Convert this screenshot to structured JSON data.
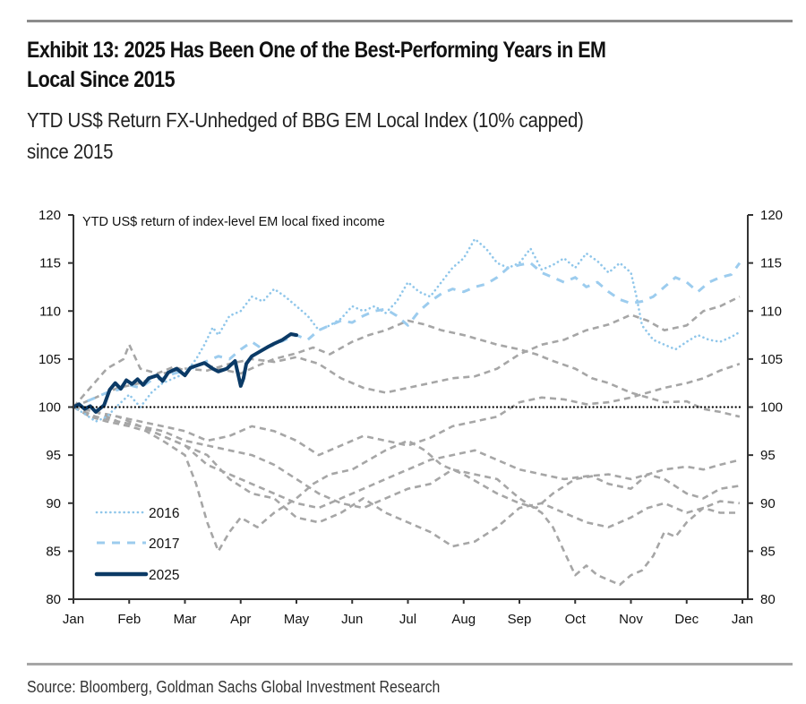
{
  "header": {
    "title": "Exhibit 13: 2025 Has Been One of the Best-Performing Years in EM Local Since 2015",
    "title_line1": "Exhibit 13: 2025 Has Been One of the Best-Performing Years in EM",
    "title_line2": "Local Since 2015",
    "subtitle_line1": "YTD US$ Return FX-Unhedged of BBG EM Local Index (10% capped)",
    "subtitle_line2": "since 2015"
  },
  "footer": {
    "source": "Source: Bloomberg, Goldman Sachs Global Investment Research"
  },
  "colors": {
    "highlight_2025": "#0b3a66",
    "year_2016": "#8fc6ea",
    "year_2017": "#9cccee",
    "other_years": "#a6a6a6",
    "baseline": "#000000",
    "axis": "#333333"
  },
  "chart_data": {
    "type": "line",
    "title": "YTD US$ return of index-level EM local fixed income",
    "xlabel": "",
    "ylabel": "",
    "x_unit": "months since Jan 1",
    "xlim": [
      0,
      12
    ],
    "ylim": [
      80,
      120
    ],
    "x_ticks": [
      {
        "pos": 0,
        "label": "Jan"
      },
      {
        "pos": 1,
        "label": "Feb"
      },
      {
        "pos": 2,
        "label": "Mar"
      },
      {
        "pos": 3,
        "label": "Apr"
      },
      {
        "pos": 4,
        "label": "May"
      },
      {
        "pos": 5,
        "label": "Jun"
      },
      {
        "pos": 6,
        "label": "Jul"
      },
      {
        "pos": 7,
        "label": "Aug"
      },
      {
        "pos": 8,
        "label": "Sep"
      },
      {
        "pos": 9,
        "label": "Oct"
      },
      {
        "pos": 10,
        "label": "Nov"
      },
      {
        "pos": 11,
        "label": "Dec"
      },
      {
        "pos": 12,
        "label": "Jan"
      }
    ],
    "y_ticks": [
      80,
      85,
      90,
      95,
      100,
      105,
      110,
      115,
      120
    ],
    "baseline": 100,
    "grid": false,
    "legend_position": "bottom-left",
    "legend": [
      {
        "label": "2016",
        "style": "dotted",
        "series": "2016"
      },
      {
        "label": "2017",
        "style": "dashed",
        "series": "2017"
      },
      {
        "label": "2025",
        "style": "solid",
        "series": "2025"
      }
    ],
    "series": [
      {
        "name": "2025",
        "style": "solid",
        "x": [
          0,
          0.1,
          0.2,
          0.3,
          0.4,
          0.55,
          0.65,
          0.75,
          0.85,
          0.95,
          1.05,
          1.15,
          1.25,
          1.35,
          1.5,
          1.6,
          1.7,
          1.85,
          2.0,
          2.1,
          2.2,
          2.35,
          2.5,
          2.6,
          2.75,
          2.9,
          3.0,
          3.05,
          3.1,
          3.2,
          3.35,
          3.5,
          3.6,
          3.75,
          3.9,
          4.0
        ],
        "values": [
          100,
          100.3,
          99.8,
          100.1,
          99.5,
          100.2,
          101.8,
          102.5,
          101.9,
          102.8,
          102.4,
          102.9,
          102.3,
          103.0,
          103.3,
          102.7,
          103.6,
          104.0,
          103.3,
          104.1,
          104.3,
          104.6,
          104.0,
          103.7,
          104.0,
          104.8,
          102.2,
          103.0,
          104.5,
          105.3,
          105.8,
          106.3,
          106.6,
          107.0,
          107.6,
          107.5
        ]
      },
      {
        "name": "2016",
        "style": "dotted",
        "x": [
          0,
          0.2,
          0.4,
          0.6,
          0.8,
          1.0,
          1.2,
          1.4,
          1.6,
          1.8,
          2.0,
          2.2,
          2.35,
          2.5,
          2.6,
          2.8,
          3.0,
          3.2,
          3.4,
          3.6,
          3.8,
          4.0,
          4.2,
          4.4,
          4.6,
          4.8,
          5.0,
          5.2,
          5.4,
          5.6,
          5.8,
          6.0,
          6.2,
          6.4,
          6.6,
          6.8,
          7.0,
          7.2,
          7.4,
          7.6,
          7.8,
          8.0,
          8.2,
          8.4,
          8.6,
          8.8,
          9.0,
          9.2,
          9.4,
          9.6,
          9.8,
          10.0,
          10.1,
          10.2,
          10.4,
          10.6,
          10.8,
          11.0,
          11.2,
          11.4,
          11.6,
          11.8,
          11.95
        ],
        "values": [
          100,
          99.3,
          98.5,
          99.0,
          100.2,
          101.3,
          100.0,
          101.5,
          102.5,
          103.0,
          103.5,
          105.0,
          106.5,
          108.3,
          107.5,
          109.5,
          110.0,
          111.5,
          111.0,
          112.3,
          111.5,
          110.5,
          109.5,
          108.0,
          108.5,
          109.2,
          110.5,
          110.0,
          110.5,
          109.8,
          111.0,
          113.0,
          112.0,
          111.5,
          113.0,
          114.5,
          115.5,
          117.5,
          116.5,
          115.0,
          114.5,
          115.0,
          116.5,
          114.3,
          114.8,
          115.5,
          114.5,
          116.0,
          115.2,
          114.0,
          115.0,
          114.0,
          111.5,
          108.5,
          107.0,
          106.5,
          106.0,
          106.8,
          107.5,
          107.0,
          106.8,
          107.3,
          107.8
        ]
      },
      {
        "name": "2017",
        "style": "dashed",
        "x": [
          0,
          0.2,
          0.4,
          0.6,
          0.8,
          1.0,
          1.2,
          1.4,
          1.6,
          1.8,
          2.0,
          2.2,
          2.4,
          2.6,
          2.8,
          3.0,
          3.2,
          3.4,
          3.6,
          3.8,
          4.0,
          4.2,
          4.4,
          4.6,
          4.8,
          5.0,
          5.2,
          5.4,
          5.6,
          5.8,
          6.0,
          6.2,
          6.4,
          6.6,
          6.8,
          7.0,
          7.2,
          7.4,
          7.6,
          7.8,
          8.0,
          8.2,
          8.4,
          8.6,
          8.8,
          9.0,
          9.2,
          9.4,
          9.6,
          9.8,
          10.0,
          10.2,
          10.4,
          10.6,
          10.8,
          11.0,
          11.2,
          11.4,
          11.6,
          11.8,
          11.95
        ],
        "values": [
          100,
          100.5,
          101.0,
          101.5,
          101.8,
          102.3,
          102.0,
          102.8,
          103.0,
          103.5,
          103.8,
          104.2,
          104.8,
          105.3,
          105.0,
          106.0,
          106.8,
          106.0,
          106.5,
          107.0,
          107.5,
          107.0,
          108.0,
          108.5,
          109.0,
          108.8,
          109.5,
          110.0,
          110.2,
          109.5,
          108.5,
          110.0,
          111.0,
          111.8,
          112.3,
          112.0,
          112.5,
          112.8,
          113.5,
          114.5,
          114.8,
          115.0,
          114.0,
          113.5,
          113.0,
          113.5,
          112.5,
          113.0,
          112.0,
          111.2,
          110.8,
          111.0,
          111.5,
          112.5,
          113.5,
          113.0,
          112.0,
          113.0,
          113.5,
          113.8,
          115.0
        ]
      },
      {
        "name": "other_a",
        "style": "dashed",
        "x": [
          0,
          0.3,
          0.6,
          0.9,
          1.0,
          1.2,
          1.5,
          1.8,
          2.0,
          2.3,
          2.6,
          3.0,
          3.3,
          3.6,
          4.0,
          4.3,
          4.6,
          5.0,
          5.3,
          5.6,
          6.0,
          6.3,
          6.6,
          7.0,
          7.3,
          7.6,
          8.0,
          8.3,
          8.6,
          9.0,
          9.3,
          9.6,
          10.0,
          10.3,
          10.6,
          11.0,
          11.3,
          11.6,
          11.95
        ],
        "values": [
          100,
          102.0,
          104.0,
          105.0,
          106.5,
          104.0,
          103.5,
          104.2,
          103.8,
          104.5,
          104.0,
          103.5,
          104.3,
          105.0,
          105.6,
          106.2,
          105.5,
          106.8,
          107.5,
          108.0,
          109.0,
          108.6,
          108.0,
          107.5,
          107.0,
          106.5,
          106.0,
          105.5,
          104.8,
          104.0,
          103.0,
          102.5,
          101.5,
          101.0,
          100.5,
          100.6,
          99.8,
          99.5,
          99.0
        ]
      },
      {
        "name": "other_b",
        "style": "dashed",
        "x": [
          0,
          0.4,
          0.8,
          1.2,
          1.6,
          2.0,
          2.4,
          2.8,
          3.2,
          3.6,
          4.0,
          4.4,
          4.8,
          5.2,
          5.6,
          6.0,
          6.4,
          6.8,
          7.2,
          7.6,
          8.0,
          8.4,
          8.8,
          9.2,
          9.6,
          10.0,
          10.3,
          10.6,
          11.0,
          11.3,
          11.6,
          11.95
        ],
        "values": [
          100,
          101.0,
          102.0,
          102.5,
          103.5,
          104.0,
          103.8,
          104.5,
          105.0,
          104.7,
          105.2,
          104.5,
          103.0,
          102.0,
          101.5,
          102.0,
          102.5,
          103.0,
          103.2,
          104.0,
          105.5,
          106.5,
          107.0,
          108.0,
          108.6,
          109.6,
          109.0,
          108.0,
          108.5,
          110.0,
          110.5,
          111.5
        ]
      },
      {
        "name": "other_c",
        "style": "dashed",
        "x": [
          0,
          0.4,
          0.8,
          1.2,
          1.6,
          2.0,
          2.4,
          2.8,
          3.2,
          3.6,
          4.0,
          4.4,
          4.8,
          5.2,
          5.6,
          6.0,
          6.4,
          6.8,
          7.2,
          7.6,
          8.0,
          8.4,
          8.8,
          9.2,
          9.6,
          10.0,
          10.3,
          10.6,
          11.0,
          11.3,
          11.6,
          11.95
        ],
        "values": [
          100,
          99.5,
          99.0,
          98.5,
          98.0,
          97.5,
          96.5,
          97.0,
          98.0,
          97.5,
          96.5,
          95.0,
          96.0,
          97.0,
          96.5,
          96.0,
          96.8,
          98.0,
          98.5,
          99.0,
          100.5,
          101.0,
          100.8,
          100.3,
          100.5,
          101.0,
          101.5,
          102.0,
          102.5,
          103.0,
          103.8,
          104.5
        ]
      },
      {
        "name": "other_d",
        "style": "dashed",
        "x": [
          0,
          0.3,
          0.6,
          1.0,
          1.3,
          1.6,
          2.0,
          2.2,
          2.4,
          2.6,
          2.8,
          3.0,
          3.3,
          3.6,
          4.0,
          4.3,
          4.6,
          5.0,
          5.3,
          5.6,
          6.0,
          6.3,
          6.6,
          7.0,
          7.3,
          7.6,
          8.0,
          8.3,
          8.6,
          9.0,
          9.3,
          9.6,
          10.0,
          10.3,
          10.6,
          11.0,
          11.3,
          11.6,
          11.95
        ],
        "values": [
          100,
          99.0,
          98.5,
          98.0,
          97.5,
          96.5,
          95.0,
          92.0,
          88.0,
          85.0,
          87.0,
          88.5,
          87.5,
          89.0,
          90.5,
          92.0,
          93.0,
          93.5,
          94.5,
          95.5,
          96.5,
          95.5,
          94.0,
          93.0,
          92.0,
          91.0,
          90.0,
          89.5,
          91.0,
          92.5,
          92.8,
          92.0,
          91.5,
          93.0,
          92.5,
          91.0,
          90.5,
          91.5,
          91.8
        ]
      },
      {
        "name": "other_e",
        "style": "dashed",
        "x": [
          0,
          0.4,
          0.8,
          1.2,
          1.6,
          2.0,
          2.4,
          2.8,
          3.2,
          3.6,
          4.0,
          4.4,
          4.8,
          5.2,
          5.6,
          6.0,
          6.4,
          6.8,
          7.2,
          7.6,
          8.0,
          8.4,
          8.8,
          9.2,
          9.6,
          10.0,
          10.3,
          10.6,
          11.0,
          11.3,
          11.6,
          11.95
        ],
        "values": [
          100,
          99.5,
          98.5,
          98.0,
          97.0,
          96.0,
          94.0,
          93.0,
          92.0,
          91.0,
          90.0,
          89.5,
          90.5,
          91.5,
          92.5,
          93.5,
          94.5,
          95.0,
          95.5,
          94.5,
          93.5,
          93.0,
          92.5,
          92.8,
          93.0,
          92.5,
          93.0,
          93.5,
          93.8,
          93.5,
          94.0,
          94.5
        ]
      },
      {
        "name": "other_f",
        "style": "dashed",
        "x": [
          0,
          0.4,
          0.8,
          1.2,
          1.6,
          2.0,
          2.4,
          2.8,
          3.2,
          3.6,
          4.0,
          4.4,
          4.8,
          5.2,
          5.6,
          6.0,
          6.4,
          6.8,
          7.2,
          7.6,
          8.0,
          8.4,
          8.8,
          9.2,
          9.6,
          10.0,
          10.3,
          10.6,
          11.0,
          11.3,
          11.6,
          11.95
        ],
        "values": [
          100,
          99.0,
          98.5,
          98.0,
          97.0,
          96.0,
          95.0,
          92.5,
          91.0,
          90.5,
          88.5,
          88.0,
          89.0,
          90.5,
          89.0,
          88.0,
          87.0,
          85.5,
          86.0,
          87.5,
          89.5,
          90.0,
          89.0,
          88.0,
          87.5,
          88.5,
          89.5,
          90.0,
          89.0,
          89.5,
          90.2,
          90.0
        ]
      },
      {
        "name": "other_g",
        "style": "dashed",
        "x": [
          0,
          0.4,
          0.8,
          1.2,
          1.6,
          2.0,
          2.4,
          2.8,
          3.2,
          3.6,
          4.0,
          4.4,
          4.8,
          5.2,
          5.6,
          6.0,
          6.4,
          6.8,
          7.2,
          7.6,
          8.0,
          8.4,
          8.6,
          8.8,
          9.0,
          9.2,
          9.4,
          9.6,
          9.8,
          10.0,
          10.2,
          10.4,
          10.6,
          10.8,
          11.0,
          11.3,
          11.6,
          11.95
        ],
        "values": [
          100,
          99.5,
          99.0,
          98.0,
          97.5,
          96.5,
          96.0,
          95.5,
          95.0,
          94.0,
          92.5,
          91.0,
          90.0,
          89.5,
          90.5,
          91.5,
          92.0,
          93.5,
          93.0,
          92.5,
          90.5,
          89.0,
          87.5,
          85.0,
          82.5,
          83.5,
          82.5,
          82.0,
          81.5,
          82.5,
          83.0,
          84.5,
          87.0,
          86.5,
          88.0,
          89.5,
          89.0,
          89.0
        ]
      }
    ]
  }
}
